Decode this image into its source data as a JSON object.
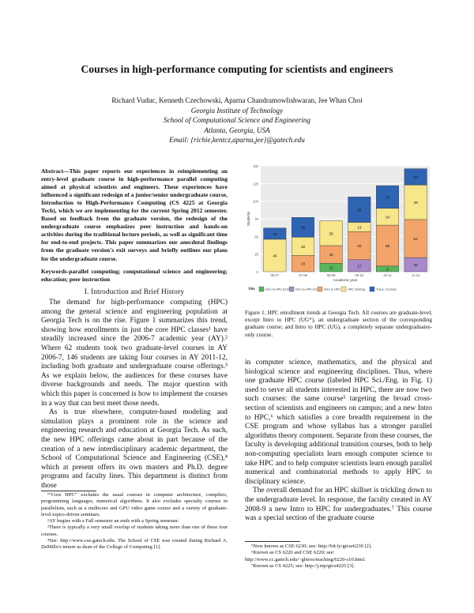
{
  "paper": {
    "title": "Courses in high-performance computing for scientists and engineers",
    "authors": "Richard Vuduc, Kenneth Czechowski, Aparna Chandramowlishwaran, Jee Whan Choi",
    "affiliation1": "Georgia Institute of Technology",
    "affiliation2": "School of Computational Science and Engineering",
    "affiliation3": "Atlanta, Georgia, USA",
    "email": "Email: {richie,kentcz,aparna,jee}@gatech.edu"
  },
  "abstract": {
    "text": "Abstract—This paper reports our experiences in reimplementing an entry-level graduate course in high-performance parallel computing aimed at physical scientists and engineers. These experiences have influenced a significant redesign of a junior/senior undergraduate course, Introduction to High-Performance Computing (CS 4225 at Georgia Tech), which we are implementing for the current Spring 2012 semester. Based on feedback from the graduate version, the redesign of the undergraduate course emphasizes peer instruction and hands-on activities during the traditional lecture periods, as well as significant time for end-to-end projects. This paper summarizes our anecdotal findings from the graduate version's exit surveys and briefly outlines our plans for the undergraduate course."
  },
  "keywords": "Keywords-parallel computing; computational science and engineering; education; peer instruction",
  "section1": {
    "heading": "I. Introduction and Brief History"
  },
  "left_body": {
    "p1": "The demand for high-performance computing (HPC) among the general science and engineering population at Georgia Tech is on the rise. Figure 1 summarizes this trend, showing how enrollments in just the core HPC classes¹ have steadily increased since the 2006-7 academic year (AY).² Where 62 students took two graduate-level courses in AY 2006-7, 146 students are taking four courses in AY 2011-12, including both graduate and undergraduate course offerings.³ As we explain below, the audiences for these courses have diverse backgrounds and needs. The major question with which this paper is concerned is how to implement the courses in a way that can best meet those needs.",
    "p2": "As is true elsewhere, computer-based modeling and simulation plays a prominent role in the science and engineering research and education at Georgia Tech. As such, the new HPC offerings came about in part because of the creation of a new interdisciplinary academic department, the School of Computational Science and Engineering (CSE),⁴ which at present offers its own masters and Ph.D. degree programs and faculty lines. This department is distinct from those"
  },
  "footnotes_left": {
    "fn1": "¹“Core HPC” excludes the usual courses in computer architecture, compilers, programming languages, numerical algorithms. It also excludes specialty courses in parallelism, such as a multicore and GPU video game course and a variety of graduate-level topics-driven seminars.",
    "fn2": "²AY begins with a Fall semester an ends with a Spring semester.",
    "fn3": "³There is typically a very small overlap of students taking more than one of these four courses.",
    "fn4": "⁴See: http://www.cse.gatech.edu. The School of CSE was created during Richard A. DeMillo's tenure as dean of the College of Computing [1]."
  },
  "right_body": {
    "p1": "in computer science, mathematics, and the physical and biological science and engineering disciplines. Thus, where one graduate HPC course (labeled HPC Sci./Eng. in Fig. 1) used to serve all students interested in HPC, there are now two such courses: the same course⁵ targeting the broad cross-section of scientists and engineers on campus; and a new Intro to HPC,⁶ which satisfies a core breadth requirement in the CSE program and whose syllabus has a stronger parallel algorithms theory component. Separate from these courses, the faculty is developing additional transition courses, both to help non-computing specialists learn enough computer science to take HPC and to help computer scientists learn enough parallel numerical and combinatorial methods to apply HPC to disciplinary science.",
    "p2": "The overall demand for an HPC skillset is trickling down to the undergraduate level. In response, the faculty created in AY 2008-9 a new Intro to HPC for undergraduates.⁷ This course was a special section of the graduate course"
  },
  "footnotes_right": {
    "fn5": "⁵Now known as CSE 6230; see: http://bit.ly/gtcse6230 [2].",
    "fn6": "⁶Known as CS 6220 and CSE 6220; see: http://www.cc.gatech.edu/~gbiros/teaching/6220-s10.html.",
    "fn7": "⁷Known as CS 4225; see: http://j.mp/gtcs4225 [3]."
  },
  "figure": {
    "caption": "Figure 1. HPC enrollment trends at Georgia Tech. All courses are graduate-level, except Intro to HPC (UG*), an undergraduate section of the corresponding graduate course; and Intro to HPC (UG), a completely separate undergraduates-only course."
  },
  "chart_data": {
    "type": "bar",
    "stacked": true,
    "categories": [
      "06-07",
      "07-08",
      "08-09",
      "09-10",
      "10-11",
      "11-12"
    ],
    "xlabel": "Academic year",
    "ylabel": "Students",
    "ylim": [
      0,
      150
    ],
    "yticks": [
      0,
      25,
      50,
      75,
      100,
      125,
      150
    ],
    "legend_title": "Title",
    "legend_position": "bottom",
    "series": [
      {
        "name": "Intro to HPC (UG*)",
        "color": "#5ab55a",
        "values": [
          0,
          0,
          12,
          0,
          8,
          0
        ]
      },
      {
        "name": "Intro to HPC (UG)",
        "color": "#a889c9",
        "values": [
          0,
          0,
          0,
          17,
          0,
          20
        ]
      },
      {
        "name": "Intro to HPC",
        "color": "#f2a46a",
        "values": [
          0,
          23,
          25,
          40,
          58,
          54
        ]
      },
      {
        "name": "HPC Sci/Eng",
        "color": "#f7e68a",
        "values": [
          46,
          26,
          35,
          13,
          24,
          49
        ]
      },
      {
        "name": "Trans. Courses",
        "color": "#2f64b3",
        "values": [
          16,
          28,
          0,
          36,
          32,
          23
        ]
      }
    ]
  }
}
